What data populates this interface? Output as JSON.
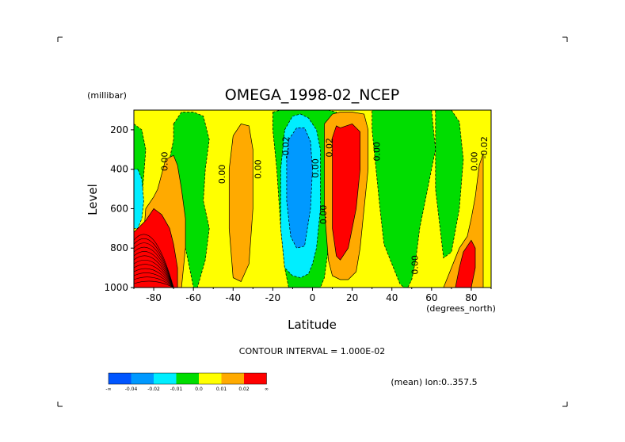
{
  "chart_data": {
    "type": "contour",
    "title": "OMEGA_1998-02_NCEP",
    "xlabel": "Latitude",
    "ylabel": "Level",
    "y_unit": "(millibar)",
    "x_unit": "(degrees_north)",
    "xlim": [
      -90,
      90
    ],
    "ylim": [
      1000,
      100
    ],
    "x_ticks": [
      -80,
      -60,
      -40,
      -20,
      0,
      20,
      40,
      60,
      80
    ],
    "x_tick_labels": [
      "-80",
      "-60",
      "-40",
      "-20",
      "0",
      "20",
      "40",
      "60",
      "80"
    ],
    "y_ticks": [
      200,
      400,
      600,
      800,
      1000
    ],
    "y_tick_labels": [
      "200",
      "400",
      "600",
      "800",
      "1000"
    ],
    "contour_interval_label": "CONTOUR INTERVAL = 1.000E-02",
    "mean_note": "(mean) lon:0..357.5",
    "legend": {
      "colors": [
        "#0055ff",
        "#0099ff",
        "#00eeff",
        "#00dd00",
        "#ffff00",
        "#ffaa00",
        "#ff0000"
      ],
      "labels": [
        "-∞",
        "-0.04",
        "-0.02",
        "-0.01",
        "0.0",
        "0.01",
        "0.02",
        "∞"
      ]
    },
    "contour_labels": [
      {
        "text": "0.00",
        "x": -73,
        "y": 360
      },
      {
        "text": "0.00",
        "x": -44,
        "y": 425
      },
      {
        "text": "0.00",
        "x": -26,
        "y": 400
      },
      {
        "text": "-0.02",
        "x": -12,
        "y": 290
      },
      {
        "text": "0.00",
        "x": 3,
        "y": 395
      },
      {
        "text": "0.02",
        "x": 10,
        "y": 290
      },
      {
        "text": "0.00",
        "x": 7,
        "y": 630
      },
      {
        "text": "0.00",
        "x": 34,
        "y": 310
      },
      {
        "text": "0.00",
        "x": 53,
        "y": 885
      },
      {
        "text": "0.00",
        "x": 83,
        "y": 360
      },
      {
        "text": "-0.02",
        "x": 88,
        "y": 290
      }
    ],
    "regions": [
      {
        "level": 0.0,
        "color": "#ffff00",
        "x": [
          -90,
          -85,
          -78,
          -74,
          -71,
          -68,
          -64,
          -62,
          -58,
          -52,
          -46,
          -40,
          -36,
          -30,
          -26,
          -22,
          -20,
          -16,
          -12,
          -8,
          -4,
          0,
          4,
          8,
          12,
          16,
          20,
          24,
          30,
          36,
          44,
          52,
          58,
          64,
          70,
          76,
          80,
          86,
          90,
          90,
          -90
        ],
        "y": [
          100,
          100,
          100,
          100,
          100,
          100,
          100,
          100,
          100,
          100,
          100,
          100,
          100,
          100,
          100,
          100,
          100,
          100,
          100,
          100,
          100,
          100,
          100,
          100,
          100,
          100,
          100,
          100,
          100,
          100,
          100,
          100,
          100,
          100,
          100,
          100,
          100,
          100,
          100,
          1000,
          1000
        ]
      },
      {
        "level": -0.01,
        "color": "#00dd00",
        "x": [
          -70,
          -66,
          -60,
          -55,
          -52,
          -54,
          -55,
          -52,
          -54,
          -58,
          -60,
          -62,
          -66,
          -70,
          -72,
          -70
        ],
        "y": [
          170,
          110,
          110,
          130,
          250,
          400,
          560,
          700,
          860,
          1000,
          1000,
          900,
          700,
          560,
          350,
          250
        ]
      },
      {
        "level": -0.01,
        "color": "#00dd00",
        "x": [
          -20,
          -16,
          -12,
          -8,
          -4,
          0,
          4,
          8,
          12,
          14,
          12,
          10,
          8,
          6,
          4,
          2,
          0,
          -4,
          -8,
          -12,
          -14,
          -16,
          -18,
          -20
        ],
        "y": [
          110,
          100,
          100,
          100,
          100,
          100,
          100,
          100,
          110,
          250,
          400,
          600,
          800,
          950,
          1000,
          1000,
          1000,
          1000,
          1000,
          1000,
          900,
          700,
          400,
          200
        ]
      },
      {
        "level": -0.01,
        "color": "#00dd00",
        "x": [
          30,
          34,
          38,
          44,
          50,
          56,
          60,
          62,
          58,
          54,
          52,
          50,
          48,
          46,
          44,
          40,
          36,
          34,
          32,
          30
        ],
        "y": [
          100,
          100,
          100,
          100,
          100,
          100,
          100,
          300,
          500,
          700,
          860,
          960,
          1000,
          1000,
          980,
          880,
          780,
          600,
          400,
          200
        ]
      },
      {
        "level": -0.01,
        "color": "#00dd00",
        "x": [
          62,
          66,
          70,
          74,
          76,
          74,
          70,
          66,
          62
        ],
        "y": [
          100,
          100,
          100,
          160,
          350,
          600,
          820,
          850,
          500
        ]
      },
      {
        "level": -0.01,
        "color": "#00dd00",
        "x": [
          -90,
          -86,
          -84,
          -86,
          -88,
          -90
        ],
        "y": [
          170,
          200,
          300,
          560,
          700,
          700
        ]
      },
      {
        "level": -0.02,
        "color": "#00eeff",
        "x": [
          -14,
          -10,
          -6,
          -2,
          2,
          4,
          4,
          2,
          0,
          -2,
          -6,
          -10,
          -14,
          -16,
          -16
        ],
        "y": [
          200,
          130,
          120,
          140,
          200,
          300,
          600,
          800,
          880,
          930,
          950,
          940,
          900,
          700,
          400
        ]
      },
      {
        "level": -0.02,
        "color": "#00eeff",
        "x": [
          -88,
          -86,
          -85,
          -86,
          -88,
          -90,
          -90
        ],
        "y": [
          400,
          450,
          560,
          650,
          700,
          700,
          400
        ]
      },
      {
        "level": -0.04,
        "color": "#0099ff",
        "x": [
          -12,
          -8,
          -4,
          -1,
          0,
          -1,
          -4,
          -8,
          -11,
          -13,
          -13
        ],
        "y": [
          250,
          190,
          190,
          260,
          400,
          600,
          790,
          800,
          740,
          560,
          350
        ]
      },
      {
        "level": 0.01,
        "color": "#ffaa00",
        "x": [
          -40,
          -36,
          -32,
          -30,
          -30,
          -32,
          -36,
          -40,
          -42,
          -42
        ],
        "y": [
          230,
          170,
          180,
          300,
          600,
          880,
          970,
          950,
          700,
          400
        ]
      },
      {
        "level": 0.01,
        "color": "#ffaa00",
        "x": [
          -78,
          -74,
          -70,
          -68,
          -66,
          -64,
          -64,
          -66,
          -70,
          -76,
          -80,
          -84,
          -86,
          -84,
          -80
        ],
        "y": [
          500,
          350,
          330,
          380,
          500,
          650,
          800,
          1000,
          1000,
          1000,
          1000,
          1000,
          860,
          600,
          540
        ]
      },
      {
        "level": 0.01,
        "color": "#ffaa00",
        "x": [
          6,
          10,
          14,
          20,
          26,
          28,
          28,
          26,
          24,
          22,
          18,
          14,
          10,
          8,
          6,
          6
        ],
        "y": [
          170,
          120,
          110,
          110,
          120,
          200,
          400,
          600,
          800,
          920,
          960,
          960,
          940,
          860,
          600,
          300
        ]
      },
      {
        "level": 0.01,
        "color": "#ffaa00",
        "x": [
          66,
          70,
          74,
          78,
          80,
          82,
          84,
          86,
          86,
          84,
          80,
          76,
          72,
          68,
          66
        ],
        "y": [
          1000,
          900,
          800,
          740,
          650,
          540,
          380,
          320,
          1000,
          1000,
          1000,
          1000,
          1000,
          1000,
          1000
        ]
      },
      {
        "level": 0.02,
        "color": "#ff0000",
        "x": [
          10,
          12,
          14,
          20,
          24,
          24,
          22,
          18,
          14,
          12,
          10,
          10
        ],
        "y": [
          240,
          180,
          190,
          170,
          210,
          400,
          600,
          800,
          860,
          840,
          700,
          400
        ]
      },
      {
        "level": 0.02,
        "color": "#ff0000",
        "x": [
          -90,
          -84,
          -80,
          -76,
          -72,
          -70,
          -68,
          -68,
          -70,
          -76,
          -82,
          -88,
          -90
        ],
        "y": [
          720,
          660,
          600,
          630,
          700,
          780,
          900,
          1000,
          1000,
          1000,
          1000,
          1000,
          1000
        ]
      },
      {
        "level": 0.02,
        "color": "#ff0000",
        "x": [
          72,
          74,
          76,
          80,
          82,
          82,
          80,
          76,
          72
        ],
        "y": [
          1000,
          900,
          820,
          760,
          800,
          900,
          1000,
          1000,
          1000
        ]
      }
    ]
  },
  "corners": {
    "mark": "+"
  }
}
